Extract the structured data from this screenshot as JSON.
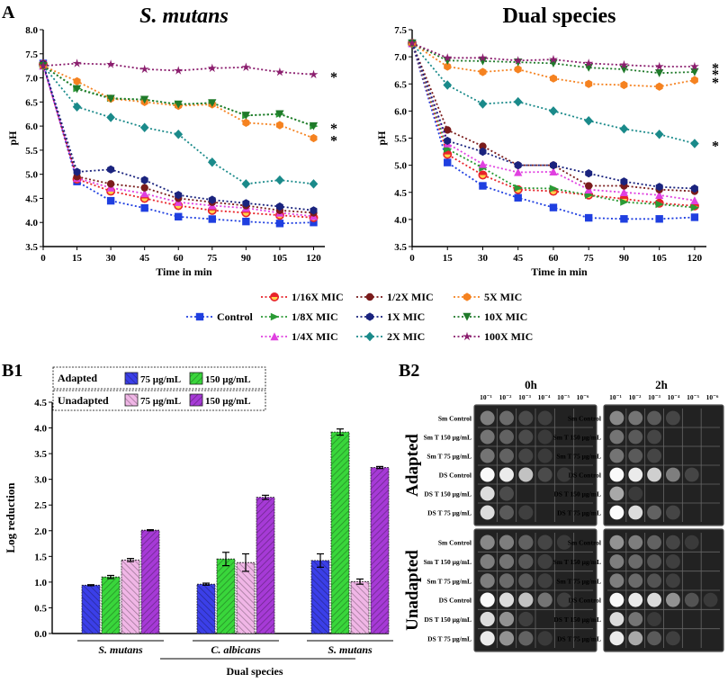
{
  "panels": {
    "A": "A",
    "B1": "B1",
    "B2": "B2"
  },
  "legendA": {
    "control": "Control",
    "items": [
      {
        "label": "1/16X MIC",
        "color": "#e8232a",
        "marker": "circle-half"
      },
      {
        "label": "1/2X MIC",
        "color": "#7a1b1b",
        "marker": "circle"
      },
      {
        "label": "5X MIC",
        "color": "#f58220",
        "marker": "hexagon"
      },
      {
        "label": "1/8X MIC",
        "color": "#2a9a35",
        "marker": "triangle-right"
      },
      {
        "label": "1X MIC",
        "color": "#1a237e",
        "marker": "hexagon"
      },
      {
        "label": "10X MIC",
        "color": "#1f7a2a",
        "marker": "triangle-down"
      },
      {
        "label": "1/4X MIC",
        "color": "#e040e0",
        "marker": "triangle-up"
      },
      {
        "label": "2X MIC",
        "color": "#1a8a8a",
        "marker": "diamond"
      },
      {
        "label": "100X MIC",
        "color": "#8b1e6e",
        "marker": "star"
      }
    ],
    "control_color": "#1f3fe0"
  },
  "chart_data": [
    {
      "type": "line",
      "title": "S. mutans",
      "xlabel": "Time in min",
      "ylabel": "pH",
      "x": [
        0,
        15,
        30,
        45,
        60,
        75,
        90,
        105,
        120
      ],
      "xlim": [
        0,
        125
      ],
      "ylim": [
        3.5,
        8.0
      ],
      "yticks": [
        "3.5",
        "4.0",
        "4.5",
        "5.0",
        "5.5",
        "6.0",
        "6.5",
        "7.0",
        "7.5",
        "8.0"
      ],
      "series": [
        {
          "name": "Control",
          "values": [
            7.3,
            4.85,
            4.45,
            4.3,
            4.12,
            4.07,
            4.02,
            3.98,
            4.0
          ]
        },
        {
          "name": "1/16X MIC",
          "values": [
            7.28,
            4.9,
            4.65,
            4.5,
            4.35,
            4.25,
            4.2,
            4.15,
            4.1
          ]
        },
        {
          "name": "1/8X MIC",
          "values": [
            7.25,
            6.78,
            6.58,
            6.55,
            6.45,
            6.48,
            6.22,
            6.25,
            6.0
          ]
        },
        {
          "name": "1/4X MIC",
          "values": [
            7.25,
            4.92,
            4.72,
            4.6,
            4.42,
            4.35,
            4.3,
            4.2,
            4.13
          ]
        },
        {
          "name": "1/2X MIC",
          "values": [
            7.28,
            4.95,
            4.8,
            4.72,
            4.5,
            4.42,
            4.35,
            4.25,
            4.2
          ]
        },
        {
          "name": "1X MIC",
          "values": [
            7.28,
            5.05,
            5.1,
            4.88,
            4.57,
            4.47,
            4.4,
            4.33,
            4.25
          ]
        },
        {
          "name": "2X MIC",
          "values": [
            7.25,
            6.4,
            6.18,
            5.97,
            5.83,
            5.25,
            4.8,
            4.88,
            4.8
          ]
        },
        {
          "name": "5X MIC",
          "values": [
            7.25,
            6.93,
            6.57,
            6.5,
            6.42,
            6.45,
            6.07,
            6.02,
            5.75
          ]
        },
        {
          "name": "10X MIC",
          "values": [
            7.25,
            6.77,
            6.57,
            6.55,
            6.45,
            6.48,
            6.22,
            6.25,
            6.0
          ]
        },
        {
          "name": "100X MIC",
          "values": [
            7.25,
            7.3,
            7.28,
            7.18,
            7.15,
            7.2,
            7.22,
            7.12,
            7.07
          ]
        }
      ],
      "significance": [
        "*",
        "*",
        "*"
      ]
    },
    {
      "type": "line",
      "title": "Dual species",
      "xlabel": "Time in min",
      "ylabel": "pH",
      "x": [
        0,
        15,
        30,
        45,
        60,
        75,
        90,
        105,
        120
      ],
      "xlim": [
        0,
        125
      ],
      "ylim": [
        3.5,
        7.5
      ],
      "yticks": [
        "3.5",
        "4.0",
        "4.5",
        "5.0",
        "5.5",
        "6.0",
        "6.5",
        "7.0",
        "7.5"
      ],
      "series": [
        {
          "name": "Control",
          "values": [
            7.25,
            5.05,
            4.62,
            4.4,
            4.22,
            4.03,
            4.01,
            4.01,
            4.04
          ]
        },
        {
          "name": "1/16X MIC",
          "values": [
            7.25,
            5.2,
            4.82,
            4.55,
            4.52,
            4.45,
            4.38,
            4.3,
            4.25
          ]
        },
        {
          "name": "1/8X MIC",
          "values": [
            7.25,
            5.3,
            4.95,
            4.58,
            4.57,
            4.45,
            4.32,
            4.28,
            4.22
          ]
        },
        {
          "name": "1/4X MIC",
          "values": [
            7.25,
            5.4,
            5.02,
            4.87,
            4.88,
            4.55,
            4.5,
            4.45,
            4.35
          ]
        },
        {
          "name": "1/2X MIC",
          "values": [
            7.25,
            5.65,
            5.35,
            5.0,
            5.0,
            4.62,
            4.62,
            4.55,
            4.52
          ]
        },
        {
          "name": "1X MIC",
          "values": [
            7.25,
            5.45,
            5.25,
            5.0,
            5.0,
            4.85,
            4.7,
            4.6,
            4.57
          ]
        },
        {
          "name": "2X MIC",
          "values": [
            7.25,
            6.48,
            6.13,
            6.17,
            6.0,
            5.82,
            5.67,
            5.57,
            5.4
          ]
        },
        {
          "name": "5X MIC",
          "values": [
            7.25,
            6.82,
            6.72,
            6.77,
            6.6,
            6.5,
            6.48,
            6.45,
            6.57
          ]
        },
        {
          "name": "10X MIC",
          "values": [
            7.25,
            6.93,
            6.92,
            6.9,
            6.88,
            6.8,
            6.77,
            6.7,
            6.72
          ]
        },
        {
          "name": "100X MIC",
          "values": [
            7.25,
            6.98,
            6.98,
            6.93,
            6.95,
            6.88,
            6.85,
            6.82,
            6.82
          ]
        }
      ],
      "significance": [
        "*",
        "*",
        "*",
        "*"
      ]
    },
    {
      "type": "bar",
      "ylabel": "Log reduction",
      "ylim": [
        0,
        4.5
      ],
      "yticks": [
        "0.0",
        "0.5",
        "1.0",
        "1.5",
        "2.0",
        "2.5",
        "3.0",
        "3.5",
        "4.0",
        "4.5"
      ],
      "categories": [
        "S. mutans",
        "C. albicans",
        "S. mutans"
      ],
      "group_label": "Dual species",
      "series": [
        {
          "name": "Adapted 75 µg/mL",
          "values": [
            0.94,
            0.96,
            1.42
          ],
          "errors": [
            0.01,
            0.02,
            0.13
          ],
          "color": "#3b3fe8"
        },
        {
          "name": "Adapted 150 µg/mL",
          "values": [
            1.1,
            1.45,
            3.92
          ],
          "errors": [
            0.03,
            0.13,
            0.06
          ],
          "color": "#39d63b"
        },
        {
          "name": "Unadapted 75 µg/mL",
          "values": [
            1.43,
            1.38,
            1.01
          ],
          "errors": [
            0.03,
            0.17,
            0.05
          ],
          "color": "#f0b6e6"
        },
        {
          "name": "Unadapted 150 µg/mL",
          "values": [
            2.01,
            2.65,
            3.23
          ],
          "errors": [
            0.01,
            0.04,
            0.02
          ],
          "color": "#a63ad6"
        }
      ]
    }
  ],
  "legendB1": {
    "adapted": "Adapted",
    "unadapted": "Unadapted",
    "c75": "75 µg/mL",
    "c150": "150 µg/mL"
  },
  "b2": {
    "col_0h": "0h",
    "col_2h": "2h",
    "dilutions": [
      "10⁻¹",
      "10⁻²",
      "10⁻³",
      "10⁻⁴",
      "10⁻⁵",
      "10⁻⁶"
    ],
    "rows": [
      "Sm Control",
      "Sm T 150 µg/mL",
      "Sm T 75 µg/mL",
      "DS Control",
      "DS T 150 µg/mL",
      "DS T 75 µg/mL"
    ],
    "adapted": "Adapted",
    "unadapted": "Unadapted"
  }
}
